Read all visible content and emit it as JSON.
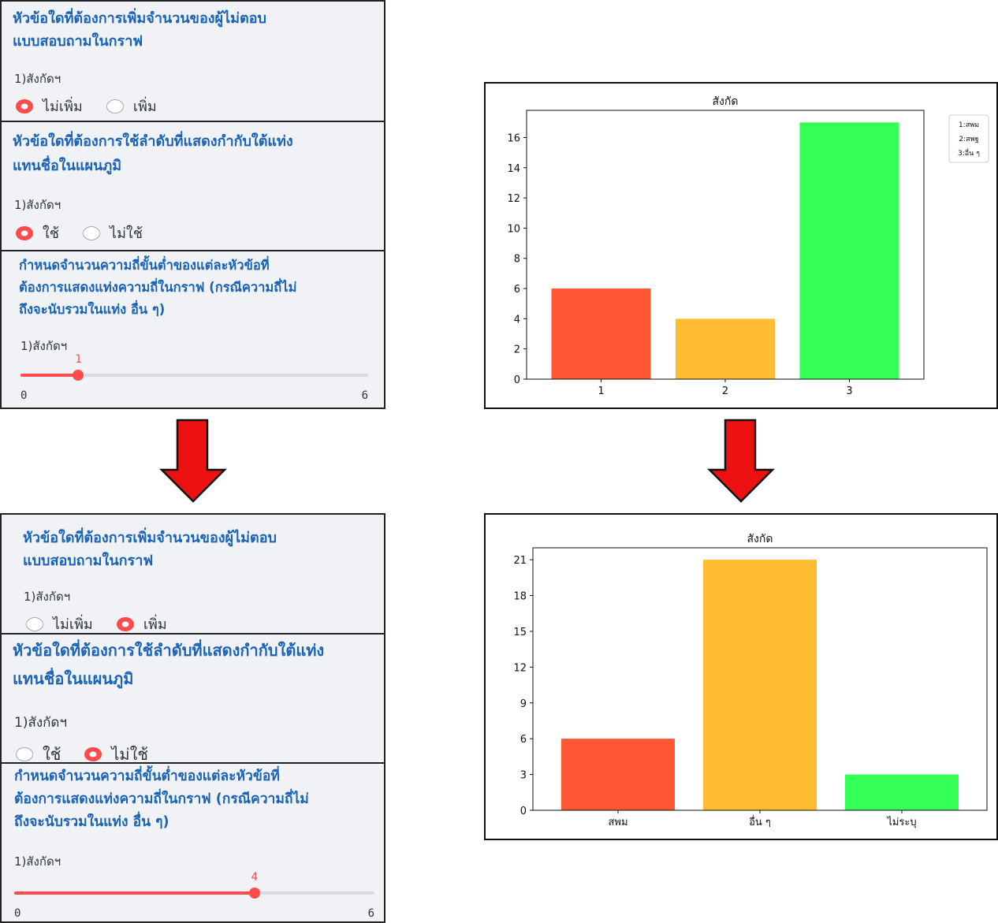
{
  "before": {
    "q1": {
      "title_line1": "หัวข้อใดที่ต้องการเพิ่มจำนวนของผู้ไม่ตอบ",
      "title_line2": "แบบสอบถามในกราฟ",
      "label": "1)สังกัดฯ",
      "option1": "ไม่เพิ่ม",
      "option2": "เพิ่ม",
      "selected": "ไม่เพิ่ม"
    },
    "q2": {
      "title_line1": "หัวข้อใดที่ต้องการใช้ลำดับที่แสดงกำกับใต้แท่ง",
      "title_line2": "แทนชื่อในแผนภูมิ",
      "label": "1)สังกัดฯ",
      "option1": "ใช้",
      "option2": "ไม่ใช้",
      "selected": "ใช้"
    },
    "q3": {
      "title_line1": "กำหนดจำนวนความถี่ขั้นต่ำของแต่ละหัวข้อที่",
      "title_line2": "ต้องการแสดงแท่งความถี่ในกราฟ (กรณีความถี่ไม่",
      "title_line3": "ถึงจะนับรวมในแท่ง อื่น ๆ)",
      "label": "1)สังกัดฯ",
      "value": 1,
      "value_label": "1",
      "min": "0",
      "max": "6"
    }
  },
  "after": {
    "q1": {
      "title_line1": "หัวข้อใดที่ต้องการเพิ่มจำนวนของผู้ไม่ตอบ",
      "title_line2": "แบบสอบถามในกราฟ",
      "label": "1)สังกัดฯ",
      "option1": "ไม่เพิ่ม",
      "option2": "เพิ่ม",
      "selected": "เพิ่ม"
    },
    "q2": {
      "title_line1": "หัวข้อใดที่ต้องการใช้ลำดับที่แสดงกำกับใต้แท่ง",
      "title_line2": "แทนชื่อในแผนภูมิ",
      "label": "1)สังกัดฯ",
      "option1": "ใช้",
      "option2": "ไม่ใช้",
      "selected": "ไม่ใช้"
    },
    "q3": {
      "title_line1": "กำหนดจำนวนความถี่ขั้นต่ำของแต่ละหัวข้อที่",
      "title_line2": "ต้องการแสดงแท่งความถี่ในกราฟ (กรณีความถี่ไม่",
      "title_line3": "ถึงจะนับรวมในแท่ง อื่น ๆ)",
      "label": "1)สังกัดฯ",
      "value": 4,
      "value_label": "4",
      "min": "0",
      "max": "6"
    }
  },
  "colors": {
    "accent": "#ff4b4b",
    "title_blue": "#1a63b8",
    "arrow_red": "#ee1111",
    "bar1": "#ff5733",
    "bar2": "#ffbd33",
    "bar3": "#33ff57"
  },
  "chart_data": [
    {
      "type": "bar",
      "title": "สังกัด",
      "categories": [
        "1",
        "2",
        "3"
      ],
      "values": [
        6,
        4,
        17
      ],
      "ylim": [
        0,
        17.8
      ],
      "yticks": [
        0,
        2,
        4,
        6,
        8,
        10,
        12,
        14,
        16
      ],
      "legend": [
        "1:สพม",
        "2:สพฐ",
        "3:อื่น ๆ"
      ],
      "legend_position": "outside-right"
    },
    {
      "type": "bar",
      "title": "สังกัด",
      "categories": [
        "สพม",
        "อื่น ๆ",
        "ไม่ระบุ"
      ],
      "values": [
        6,
        21,
        3
      ],
      "ylim": [
        0,
        22
      ],
      "yticks": [
        0,
        3,
        6,
        9,
        12,
        15,
        18,
        21
      ]
    }
  ]
}
